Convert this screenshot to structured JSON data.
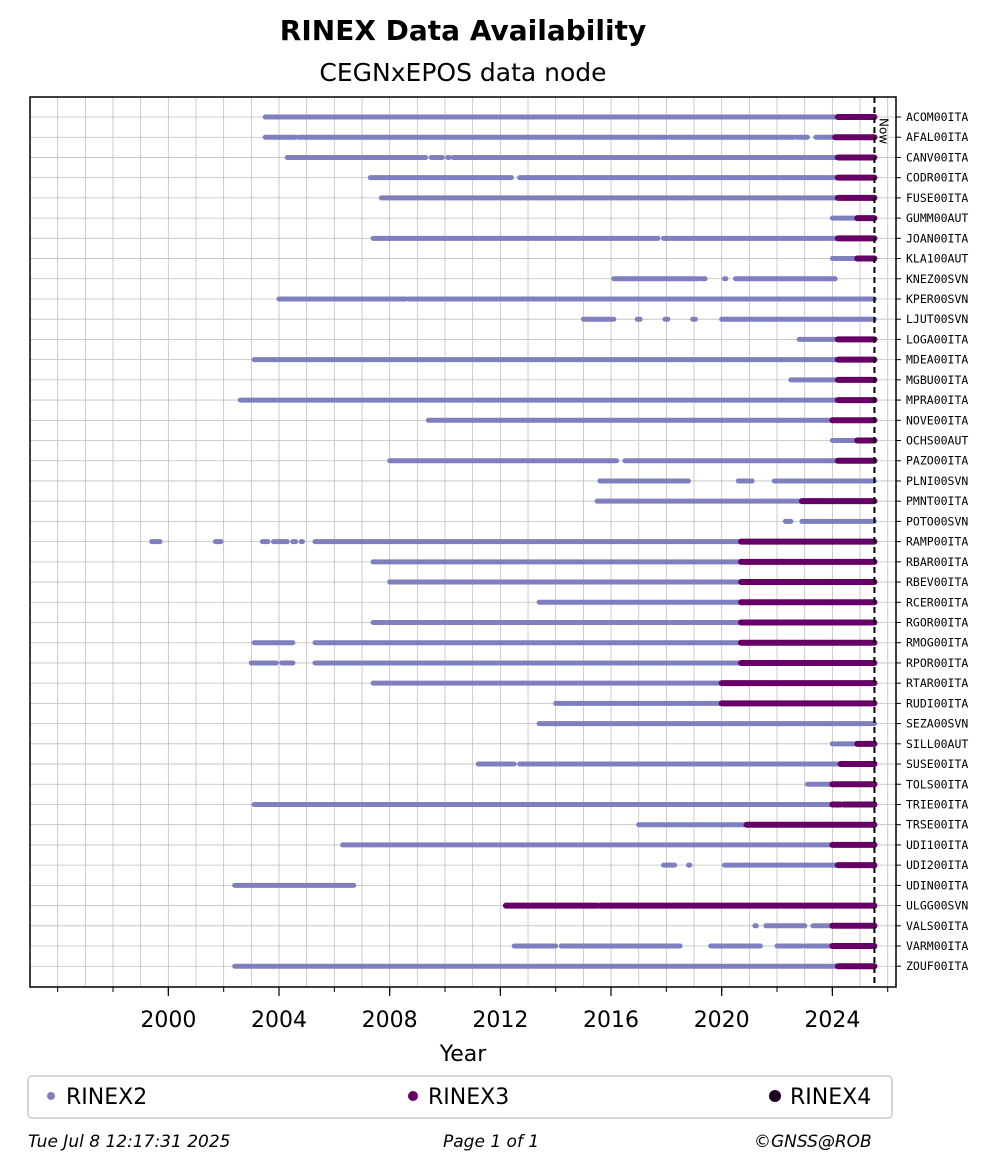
{
  "chart_data": {
    "type": "scatter",
    "title": "RINEX Data Availability",
    "subtitle": "CEGNxEPOS data node",
    "xlabel": "Year",
    "xlim": [
      1995.0,
      2026.3
    ],
    "xticks": [
      2000,
      2004,
      2008,
      2012,
      2016,
      2020,
      2024
    ],
    "grid": true,
    "legend_position": "bottom",
    "now_label": "Now",
    "now_year": 2025.52,
    "series": [
      {
        "name": "RINEX2",
        "color": "#7f7fbf"
      },
      {
        "name": "RINEX3",
        "color": "#660066"
      },
      {
        "name": "RINEX4",
        "color": "#1a0020"
      }
    ],
    "stations": [
      {
        "name": "ACOM00ITA",
        "rinex2": [
          [
            2003.5,
            2024.2
          ]
        ],
        "rinex3": [
          [
            2024.2,
            2025.52
          ]
        ]
      },
      {
        "name": "AFAL00ITA",
        "rinex2": [
          [
            2003.5,
            2004.6
          ],
          [
            2004.7,
            2018.0
          ],
          [
            2018.1,
            2022.6
          ],
          [
            2022.7,
            2023.1
          ],
          [
            2023.4,
            2024.1
          ]
        ],
        "rinex3": [
          [
            2024.1,
            2025.52
          ]
        ]
      },
      {
        "name": "CANV00ITA",
        "rinex2": [
          [
            2004.3,
            2009.3
          ],
          [
            2009.5,
            2009.9
          ],
          [
            2010.1,
            2010.15
          ],
          [
            2010.3,
            2024.2
          ]
        ],
        "rinex3": [
          [
            2024.2,
            2025.52
          ]
        ]
      },
      {
        "name": "CODR00ITA",
        "rinex2": [
          [
            2007.3,
            2012.4
          ],
          [
            2012.7,
            2024.2
          ]
        ],
        "rinex3": [
          [
            2024.2,
            2025.52
          ]
        ]
      },
      {
        "name": "FUSE00ITA",
        "rinex2": [
          [
            2007.7,
            2024.2
          ]
        ],
        "rinex3": [
          [
            2024.2,
            2025.52
          ]
        ]
      },
      {
        "name": "GUMM00AUT",
        "rinex2": [
          [
            2024.0,
            2024.9
          ]
        ],
        "rinex3": [
          [
            2024.9,
            2025.52
          ]
        ]
      },
      {
        "name": "JOAN00ITA",
        "rinex2": [
          [
            2007.4,
            2017.7
          ],
          [
            2017.9,
            2024.2
          ]
        ],
        "rinex3": [
          [
            2024.2,
            2025.52
          ]
        ]
      },
      {
        "name": "KLA100AUT",
        "rinex2": [
          [
            2024.0,
            2024.9
          ]
        ],
        "rinex3": [
          [
            2024.9,
            2025.52
          ]
        ]
      },
      {
        "name": "KNEZ00SVN",
        "rinex2": [
          [
            2016.1,
            2019.2
          ],
          [
            2019.3,
            2019.4
          ],
          [
            2020.1,
            2020.15
          ],
          [
            2020.5,
            2024.1
          ]
        ],
        "rinex3": []
      },
      {
        "name": "KPER00SVN",
        "rinex2": [
          [
            2004.0,
            2008.6
          ],
          [
            2008.7,
            2025.52
          ]
        ],
        "rinex3": []
      },
      {
        "name": "LJUT00SVN",
        "rinex2": [
          [
            2015.0,
            2016.1
          ],
          [
            2016.95,
            2017.05
          ],
          [
            2017.95,
            2018.05
          ],
          [
            2018.95,
            2019.05
          ],
          [
            2020.0,
            2025.52
          ]
        ],
        "rinex3": []
      },
      {
        "name": "LOGA00ITA",
        "rinex2": [
          [
            2022.8,
            2024.2
          ]
        ],
        "rinex3": [
          [
            2024.2,
            2025.52
          ]
        ]
      },
      {
        "name": "MDEA00ITA",
        "rinex2": [
          [
            2003.1,
            2024.2
          ]
        ],
        "rinex3": [
          [
            2024.2,
            2025.52
          ]
        ]
      },
      {
        "name": "MGBU00ITA",
        "rinex2": [
          [
            2022.5,
            2024.2
          ]
        ],
        "rinex3": [
          [
            2024.2,
            2025.52
          ]
        ]
      },
      {
        "name": "MPRA00ITA",
        "rinex2": [
          [
            2002.6,
            2024.2
          ]
        ],
        "rinex3": [
          [
            2024.2,
            2025.52
          ]
        ]
      },
      {
        "name": "NOVE00ITA",
        "rinex2": [
          [
            2009.4,
            2024.0
          ]
        ],
        "rinex3": [
          [
            2024.0,
            2025.52
          ]
        ]
      },
      {
        "name": "OCHS00AUT",
        "rinex2": [
          [
            2024.0,
            2024.9
          ]
        ],
        "rinex3": [
          [
            2024.9,
            2025.52
          ]
        ]
      },
      {
        "name": "PAZO00ITA",
        "rinex2": [
          [
            2008.0,
            2016.2
          ],
          [
            2016.5,
            2024.2
          ]
        ],
        "rinex3": [
          [
            2024.2,
            2025.52
          ]
        ]
      },
      {
        "name": "PLNI00SVN",
        "rinex2": [
          [
            2015.6,
            2018.8
          ],
          [
            2020.6,
            2021.1
          ],
          [
            2021.9,
            2025.52
          ]
        ],
        "rinex3": []
      },
      {
        "name": "PMNT00ITA",
        "rinex2": [
          [
            2015.5,
            2022.9
          ]
        ],
        "rinex3": [
          [
            2022.9,
            2025.52
          ]
        ]
      },
      {
        "name": "POTO00SVN",
        "rinex2": [
          [
            2022.3,
            2022.5
          ],
          [
            2022.9,
            2025.52
          ]
        ],
        "rinex3": []
      },
      {
        "name": "RAMP00ITA",
        "rinex2": [
          [
            1999.4,
            1999.7
          ],
          [
            2001.7,
            2001.9
          ],
          [
            2003.4,
            2003.6
          ],
          [
            2003.8,
            2004.3
          ],
          [
            2004.5,
            2004.6
          ],
          [
            2004.8,
            2004.85
          ],
          [
            2005.3,
            2020.7
          ]
        ],
        "rinex3": [
          [
            2020.7,
            2025.52
          ]
        ]
      },
      {
        "name": "RBAR00ITA",
        "rinex2": [
          [
            2007.4,
            2020.7
          ]
        ],
        "rinex3": [
          [
            2020.7,
            2025.52
          ]
        ]
      },
      {
        "name": "RBEV00ITA",
        "rinex2": [
          [
            2008.0,
            2020.7
          ]
        ],
        "rinex3": [
          [
            2020.7,
            2025.52
          ]
        ]
      },
      {
        "name": "RCER00ITA",
        "rinex2": [
          [
            2013.4,
            2020.7
          ]
        ],
        "rinex3": [
          [
            2020.7,
            2025.52
          ]
        ]
      },
      {
        "name": "RGOR00ITA",
        "rinex2": [
          [
            2007.4,
            2020.7
          ]
        ],
        "rinex3": [
          [
            2020.7,
            2025.52
          ]
        ]
      },
      {
        "name": "RMOG00ITA",
        "rinex2": [
          [
            2003.1,
            2004.5
          ],
          [
            2005.3,
            2020.7
          ]
        ],
        "rinex3": [
          [
            2020.7,
            2025.52
          ]
        ]
      },
      {
        "name": "RPOR00ITA",
        "rinex2": [
          [
            2003.0,
            2003.9
          ],
          [
            2004.1,
            2004.5
          ],
          [
            2005.3,
            2020.7
          ]
        ],
        "rinex3": [
          [
            2020.7,
            2025.52
          ]
        ]
      },
      {
        "name": "RTAR00ITA",
        "rinex2": [
          [
            2007.4,
            2020.0
          ]
        ],
        "rinex3": [
          [
            2020.0,
            2025.52
          ]
        ]
      },
      {
        "name": "RUDI00ITA",
        "rinex2": [
          [
            2014.0,
            2020.0
          ]
        ],
        "rinex3": [
          [
            2020.0,
            2025.52
          ]
        ]
      },
      {
        "name": "SEZA00SVN",
        "rinex2": [
          [
            2013.4,
            2025.52
          ]
        ],
        "rinex3": []
      },
      {
        "name": "SILL00AUT",
        "rinex2": [
          [
            2024.0,
            2024.9
          ]
        ],
        "rinex3": [
          [
            2024.9,
            2025.52
          ]
        ]
      },
      {
        "name": "SUSE00ITA",
        "rinex2": [
          [
            2011.2,
            2012.5
          ],
          [
            2012.7,
            2024.3
          ]
        ],
        "rinex3": [
          [
            2024.3,
            2025.52
          ]
        ]
      },
      {
        "name": "TOLS00ITA",
        "rinex2": [
          [
            2023.1,
            2024.0
          ]
        ],
        "rinex3": [
          [
            2024.0,
            2025.52
          ]
        ]
      },
      {
        "name": "TRIE00ITA",
        "rinex2": [
          [
            2003.1,
            2024.0
          ]
        ],
        "rinex3": [
          [
            2024.0,
            2024.3
          ],
          [
            2024.4,
            2025.52
          ]
        ]
      },
      {
        "name": "TRSE00ITA",
        "rinex2": [
          [
            2017.0,
            2020.8
          ]
        ],
        "rinex3": [
          [
            2020.9,
            2025.52
          ]
        ]
      },
      {
        "name": "UDI100ITA",
        "rinex2": [
          [
            2006.3,
            2024.0
          ]
        ],
        "rinex3": [
          [
            2024.0,
            2025.52
          ]
        ]
      },
      {
        "name": "UDI200ITA",
        "rinex2": [
          [
            2017.9,
            2018.3
          ],
          [
            2018.8,
            2018.85
          ],
          [
            2020.1,
            2024.2
          ]
        ],
        "rinex3": [
          [
            2024.2,
            2025.52
          ]
        ]
      },
      {
        "name": "UDIN00ITA",
        "rinex2": [
          [
            2002.4,
            2006.7
          ]
        ],
        "rinex3": []
      },
      {
        "name": "ULGG00SVN",
        "rinex2": [],
        "rinex3": [
          [
            2012.2,
            2015.5
          ],
          [
            2015.6,
            2025.52
          ]
        ]
      },
      {
        "name": "VALS00ITA",
        "rinex2": [
          [
            2021.2,
            2021.25
          ],
          [
            2021.6,
            2023.0
          ],
          [
            2023.3,
            2024.0
          ]
        ],
        "rinex3": [
          [
            2024.0,
            2025.52
          ]
        ]
      },
      {
        "name": "VARM00ITA",
        "rinex2": [
          [
            2012.5,
            2014.0
          ],
          [
            2014.2,
            2018.5
          ],
          [
            2019.6,
            2021.4
          ],
          [
            2022.0,
            2022.9
          ],
          [
            2023.0,
            2024.0
          ]
        ],
        "rinex3": [
          [
            2024.0,
            2025.52
          ]
        ]
      },
      {
        "name": "ZOUF00ITA",
        "rinex2": [
          [
            2002.4,
            2024.2
          ]
        ],
        "rinex3": [
          [
            2024.2,
            2025.52
          ]
        ]
      }
    ]
  },
  "footer": {
    "timestamp": "Tue Jul  8 12:17:31 2025",
    "page": "Page 1 of 1",
    "copyright": "©GNSS@ROB"
  }
}
